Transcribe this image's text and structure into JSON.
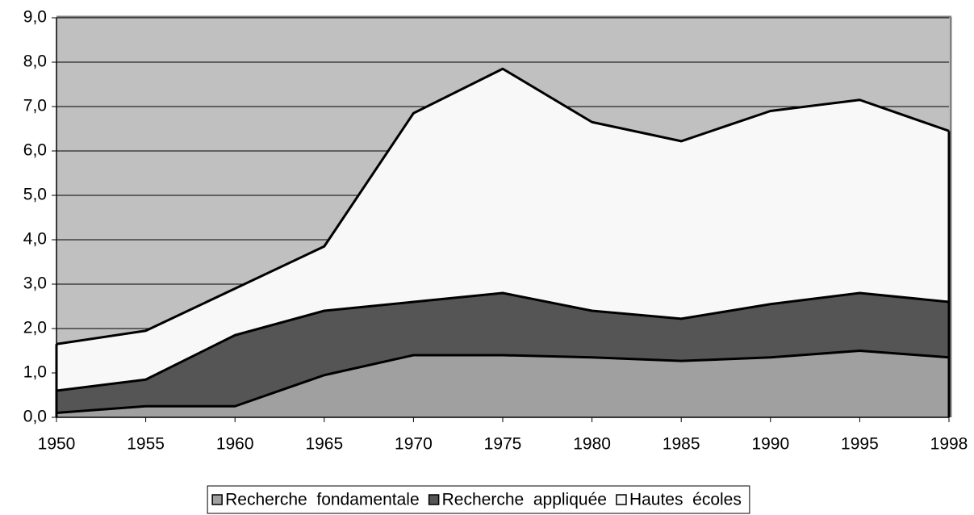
{
  "chart_data": {
    "type": "stacked_area",
    "categories": [
      "1950",
      "1955",
      "1960",
      "1965",
      "1970",
      "1975",
      "1980",
      "1985",
      "1990",
      "1995",
      "1998"
    ],
    "series": [
      {
        "name": "Recherche  fondamentale",
        "color": "#a0a0a0",
        "values": [
          0.1,
          0.25,
          0.25,
          0.95,
          1.4,
          1.4,
          1.35,
          1.27,
          1.35,
          1.5,
          1.35
        ]
      },
      {
        "name": "Recherche  appliquée",
        "color": "#555555",
        "values": [
          0.5,
          0.6,
          1.6,
          1.45,
          1.2,
          1.4,
          1.05,
          0.95,
          1.2,
          1.3,
          1.25
        ]
      },
      {
        "name": "Hautes  écoles",
        "color": "#f8f8f8",
        "values": [
          1.05,
          1.1,
          1.05,
          1.45,
          4.25,
          5.05,
          4.25,
          4.0,
          4.35,
          4.35,
          3.85
        ]
      }
    ],
    "ylim": [
      0,
      9
    ],
    "yticks": [
      {
        "value": 0,
        "label": "0,0"
      },
      {
        "value": 1,
        "label": "1,0"
      },
      {
        "value": 2,
        "label": "2,0"
      },
      {
        "value": 3,
        "label": "3,0"
      },
      {
        "value": 4,
        "label": "4,0"
      },
      {
        "value": 5,
        "label": "5,0"
      },
      {
        "value": 6,
        "label": "6,0"
      },
      {
        "value": 7,
        "label": "7,0"
      },
      {
        "value": 8,
        "label": "8,0"
      },
      {
        "value": 9,
        "label": "9,0"
      }
    ],
    "grid": true,
    "background": "#c0c0c0",
    "legend": "bottom"
  }
}
